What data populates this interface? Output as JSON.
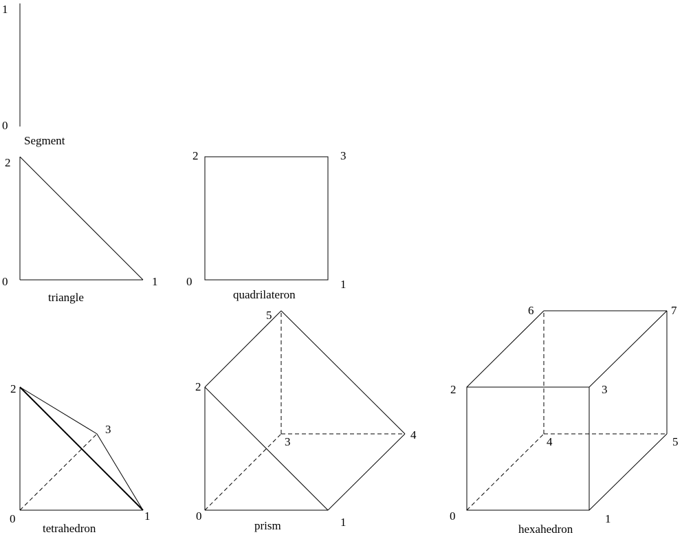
{
  "shapes": {
    "segment": {
      "name": "Segment",
      "vertex_labels": [
        "0",
        "1"
      ]
    },
    "triangle": {
      "name": "triangle",
      "vertex_labels": [
        "0",
        "1",
        "2"
      ]
    },
    "quadrilateral": {
      "name": "quadrilateron",
      "vertex_labels": [
        "0",
        "1",
        "2",
        "3"
      ]
    },
    "tetrahedron": {
      "name": "tetrahedron",
      "vertex_labels": [
        "0",
        "1",
        "2",
        "3"
      ]
    },
    "prism": {
      "name": "prism",
      "vertex_labels": [
        "0",
        "1",
        "2",
        "3",
        "4",
        "5"
      ]
    },
    "hexahedron": {
      "name": "hexahedron",
      "vertex_labels": [
        "0",
        "1",
        "2",
        "3",
        "4",
        "5",
        "6",
        "7"
      ]
    }
  }
}
